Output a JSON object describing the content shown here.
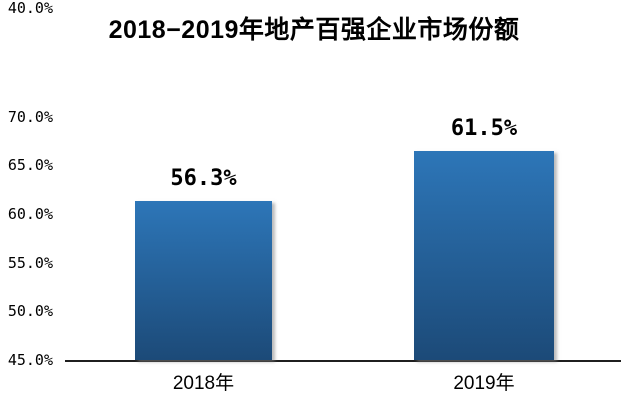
{
  "chart_data": {
    "type": "bar",
    "title": "2018−2019年地产百强企业市场份额",
    "categories": [
      "2018年",
      "2019年"
    ],
    "values": [
      56.3,
      61.5
    ],
    "value_labels": [
      "56.3%",
      "61.5%"
    ],
    "yticks": [
      "70.0%",
      "65.0%",
      "60.0%",
      "55.0%",
      "50.0%",
      "45.0%",
      "40.0%"
    ],
    "ylim": [
      40,
      70
    ],
    "ytick_step": 5,
    "grid": "off",
    "legend": "none",
    "colors": {
      "bar_gradient_top": "#2d76b8",
      "bar_gradient_bottom": "#1c4a78",
      "axis_line": "#1f1f1f",
      "text": "#000000",
      "background": "#ffffff"
    }
  }
}
